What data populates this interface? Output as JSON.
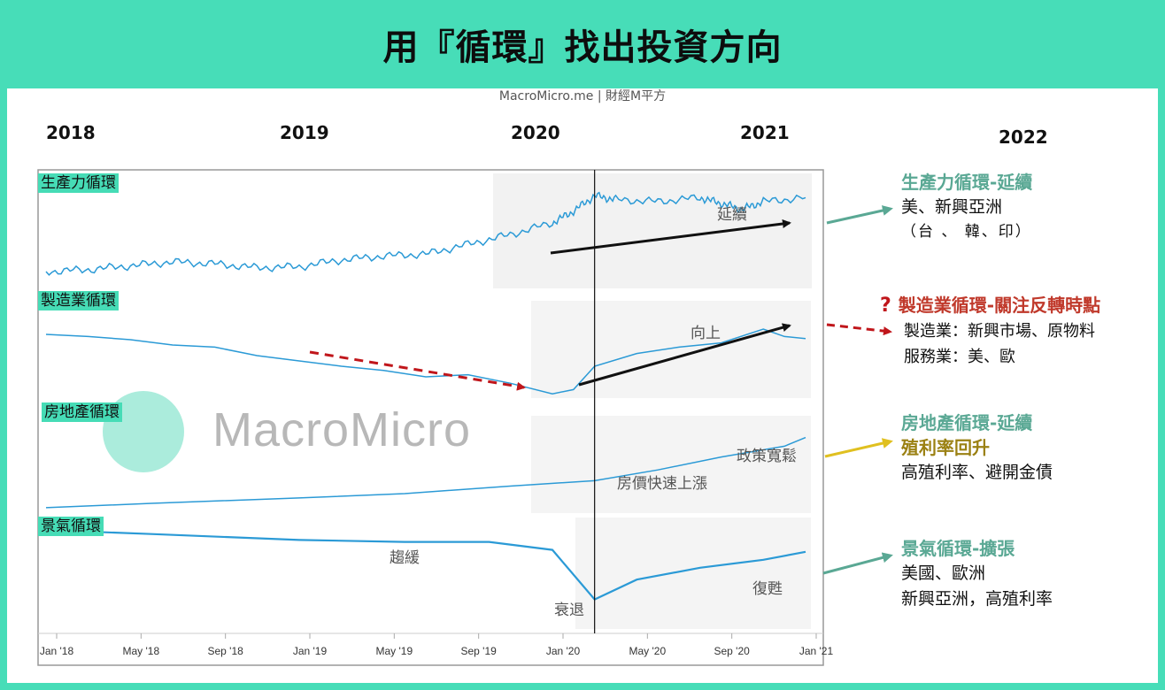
{
  "title": "用『循環』找出投資方向",
  "source": "MacroMicro.me | 財經M平方",
  "watermark": "MacroMicro",
  "years": [
    "2018",
    "2019",
    "2020",
    "2021",
    "2022"
  ],
  "colors": {
    "background": "#47ddb8",
    "line": "#2b9ad6",
    "teal_heading": "#5aa894",
    "red_heading": "#c0392b",
    "gold_text": "#9b8113",
    "yellow_arrow": "#e0c020",
    "red_arrow": "#c0161b"
  },
  "chart_data": {
    "type": "line",
    "x_ticks": [
      "Jan '18",
      "May '18",
      "Sep '18",
      "Jan '19",
      "May '19",
      "Sep '19",
      "Jan '20",
      "May '20",
      "Sep '20",
      "Jan '21"
    ],
    "x_range": [
      "2018-01",
      "2021-01"
    ],
    "event_line": "2020-03",
    "series": [
      {
        "name": "生產力循環",
        "annotations": [
          "延續"
        ],
        "points": [
          [
            "2018-01",
            10
          ],
          [
            "2018-03",
            12
          ],
          [
            "2018-05",
            16
          ],
          [
            "2018-07",
            20
          ],
          [
            "2018-09",
            18
          ],
          [
            "2018-11",
            14
          ],
          [
            "2019-01",
            15
          ],
          [
            "2019-03",
            22
          ],
          [
            "2019-05",
            26
          ],
          [
            "2019-07",
            28
          ],
          [
            "2019-09",
            38
          ],
          [
            "2019-11",
            48
          ],
          [
            "2020-01",
            60
          ],
          [
            "2020-02",
            72
          ],
          [
            "2020-03",
            88
          ],
          [
            "2020-04",
            84
          ],
          [
            "2020-06",
            82
          ],
          [
            "2020-08",
            86
          ],
          [
            "2020-09",
            80
          ],
          [
            "2020-10",
            74
          ],
          [
            "2020-11",
            82
          ],
          [
            "2021-01",
            86
          ]
        ]
      },
      {
        "name": "製造業循環",
        "annotations": [
          "向上"
        ],
        "points": [
          [
            "2018-01",
            60
          ],
          [
            "2018-03",
            58
          ],
          [
            "2018-05",
            55
          ],
          [
            "2018-07",
            50
          ],
          [
            "2018-09",
            48
          ],
          [
            "2018-11",
            40
          ],
          [
            "2019-01",
            35
          ],
          [
            "2019-03",
            30
          ],
          [
            "2019-05",
            26
          ],
          [
            "2019-07",
            20
          ],
          [
            "2019-09",
            22
          ],
          [
            "2019-11",
            14
          ],
          [
            "2020-01",
            4
          ],
          [
            "2020-02",
            8
          ],
          [
            "2020-03",
            30
          ],
          [
            "2020-05",
            42
          ],
          [
            "2020-07",
            48
          ],
          [
            "2020-09",
            52
          ],
          [
            "2020-11",
            65
          ],
          [
            "2020-12",
            58
          ],
          [
            "2021-01",
            56
          ]
        ]
      },
      {
        "name": "房地產循環",
        "annotations": [
          "房價快速上漲",
          "政策寬鬆"
        ],
        "points": [
          [
            "2018-01",
            5
          ],
          [
            "2018-06",
            9
          ],
          [
            "2019-01",
            14
          ],
          [
            "2019-06",
            18
          ],
          [
            "2019-11",
            25
          ],
          [
            "2020-03",
            30
          ],
          [
            "2020-06",
            40
          ],
          [
            "2020-09",
            52
          ],
          [
            "2020-12",
            62
          ],
          [
            "2021-01",
            70
          ]
        ]
      },
      {
        "name": "景氣循環",
        "annotations": [
          "趨緩",
          "衰退",
          "復甦"
        ],
        "points": [
          [
            "2018-01",
            90
          ],
          [
            "2018-06",
            86
          ],
          [
            "2019-01",
            80
          ],
          [
            "2019-06",
            78
          ],
          [
            "2019-10",
            78
          ],
          [
            "2020-01",
            70
          ],
          [
            "2020-03",
            20
          ],
          [
            "2020-05",
            40
          ],
          [
            "2020-08",
            52
          ],
          [
            "2020-11",
            60
          ],
          [
            "2021-01",
            68
          ]
        ]
      }
    ]
  },
  "right": [
    {
      "heading": "生產力循環-延續",
      "lines": [
        "美、新興亞洲"
      ],
      "sub": [
        "（台 、 韓、印）"
      ]
    },
    {
      "question": "?",
      "heading": "製造業循環-關注反轉時點",
      "lines": [
        "製造業：新興市場、原物料",
        "服務業：美、歐"
      ]
    },
    {
      "heading": "房地產循環-延續",
      "emph": "殖利率回升",
      "lines": [
        "高殖利率、避開金債"
      ]
    },
    {
      "heading": "景氣循環-擴張",
      "lines": [
        "美國、歐洲",
        "新興亞洲，高殖利率"
      ]
    }
  ]
}
